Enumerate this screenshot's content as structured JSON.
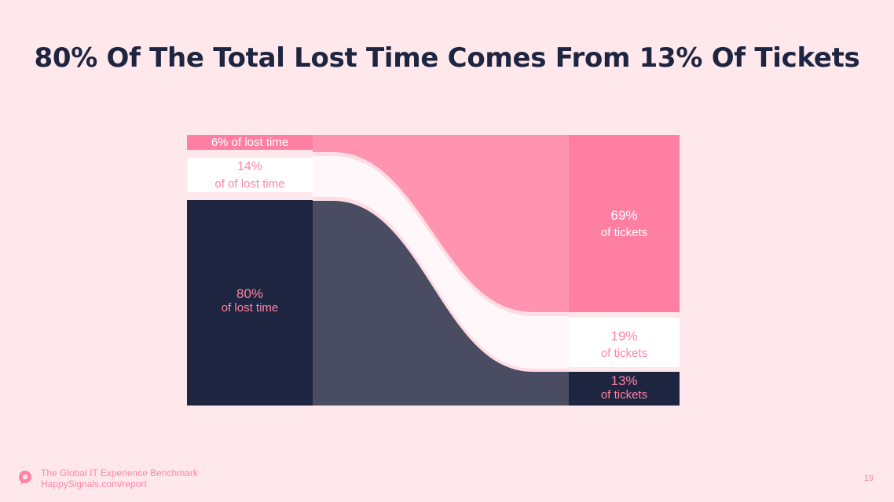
{
  "title": "80% Of The Total Lost Time Comes From 13% Of Tickets",
  "colors": {
    "background": "#FFE8EC",
    "navy": "#1E2540",
    "slate": "#4A4D62",
    "pink_light": "#FF93B0",
    "pink_strong": "#FF7FA2",
    "white": "#FFFFFF",
    "label_pink": "#FF84A3"
  },
  "left_segments": [
    {
      "value": "6%",
      "text": "of lost time",
      "label": "6% of lost time"
    },
    {
      "value": "14%",
      "text": "of of lost time"
    },
    {
      "value": "80%",
      "text": "of lost time"
    }
  ],
  "right_segments": [
    {
      "value": "69%",
      "text": "of tickets"
    },
    {
      "value": "19%",
      "text": "of tickets"
    },
    {
      "value": "13%",
      "text": "of tickets"
    }
  ],
  "footer": {
    "line1": "The Global IT Experience Benchmark",
    "line2": "HappySignals.com/report",
    "page_number": "19",
    "logo_icon": "speech-bubble-icon"
  }
}
